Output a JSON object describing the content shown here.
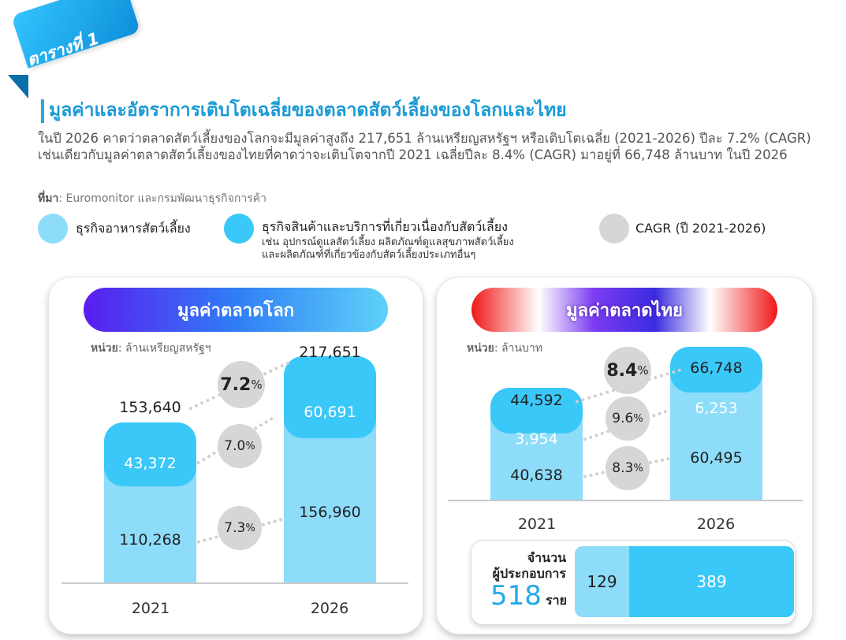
{
  "header": {
    "badge": "ตารางที่ 1",
    "title": "มูลค่าและอัตราการเติบโตเฉลี่ยของตลาดสัตว์เลี้ยงของโลกและไทย",
    "description": "ในปี 2026 คาดว่าตลาดสัตว์เลี้ยงของโลกจะมีมูลค่าสูงถึง 217,651 ล้านเหรียญสหรัฐฯ หรือเติบโตเฉลี่ย (2021-2026) ปีละ 7.2% (CAGR) เช่นเดียวกับมูลค่าตลาดสัตว์เลี้ยงของไทยที่คาดว่าจะเติบโตจากปี 2021 เฉลี่ยปีละ 8.4% (CAGR) มาอยู่ที่ 66,748 ล้านบาท ในปี 2026",
    "source_label": "ที่มา",
    "source_text": ": Euromonitor และกรมพัฒนาธุรกิจการค้า"
  },
  "legend": {
    "food": "ธุรกิจอาหารสัตว์เลี้ยง",
    "products": "ธุรกิจสินค้าและบริการที่เกี่ยวเนื่องกับสัตว์เลี้ยง",
    "products_sub1": "เช่น อุปกรณ์ดูแลสัตว์เลี้ยง ผลิตภัณฑ์ดูแลสุขภาพสัตว์เลี้ยง",
    "products_sub2": "และผลิตภัณฑ์ที่เกี่ยวข้องกับสัตว์เลี้ยงประเภทอื่นๆ",
    "cagr": "CAGR (ปี 2021-2026)",
    "colors": {
      "food": "#8ddcfa",
      "products": "#3ac8f8",
      "cagr": "#d6d6d6"
    }
  },
  "chart_data": [
    {
      "type": "bar",
      "title": "มูลค่าตลาดโลก",
      "unit_label": "หน่วย",
      "unit_text": ": ล้านเหรียญสหรัฐฯ",
      "categories": [
        "2021",
        "2026"
      ],
      "series": [
        {
          "name": "ธุรกิจอาหารสัตว์เลี้ยง",
          "values": [
            110268,
            156960
          ],
          "labels": [
            "110,268",
            "156,960"
          ]
        },
        {
          "name": "ธุรกิจสินค้าและบริการที่เกี่ยวเนื่องกับสัตว์เลี้ยง",
          "values": [
            43372,
            60691
          ],
          "labels": [
            "43,372",
            "60,691"
          ]
        }
      ],
      "totals": [
        "153,640",
        "217,651"
      ],
      "cagr": {
        "total": "7.2",
        "products": "7.0",
        "food": "7.3",
        "suffix": "%"
      }
    },
    {
      "type": "bar",
      "title": "มูลค่าตลาดไทย",
      "unit_label": "หน่วย",
      "unit_text": ": ล้านบาท",
      "categories": [
        "2021",
        "2026"
      ],
      "series": [
        {
          "name": "ธุรกิจอาหารสัตว์เลี้ยง",
          "values": [
            40638,
            60495
          ],
          "labels": [
            "40,638",
            "60,495"
          ]
        },
        {
          "name": "ธุรกิจสินค้าและบริการที่เกี่ยวเนื่องกับสัตว์เลี้ยง",
          "values": [
            3954,
            6253
          ],
          "labels": [
            "3,954",
            "6,253"
          ]
        }
      ],
      "totals": [
        "44,592",
        "66,748"
      ],
      "cagr": {
        "total": "8.4",
        "products": "9.6",
        "food": "8.3",
        "suffix": "%"
      }
    }
  ],
  "operators": {
    "label_line1": "จำนวน",
    "label_line2": "ผู้ประกอบการ",
    "total": "518",
    "unit": "ราย",
    "segments": [
      {
        "value": 129,
        "label": "129"
      },
      {
        "value": 389,
        "label": "389"
      }
    ]
  }
}
